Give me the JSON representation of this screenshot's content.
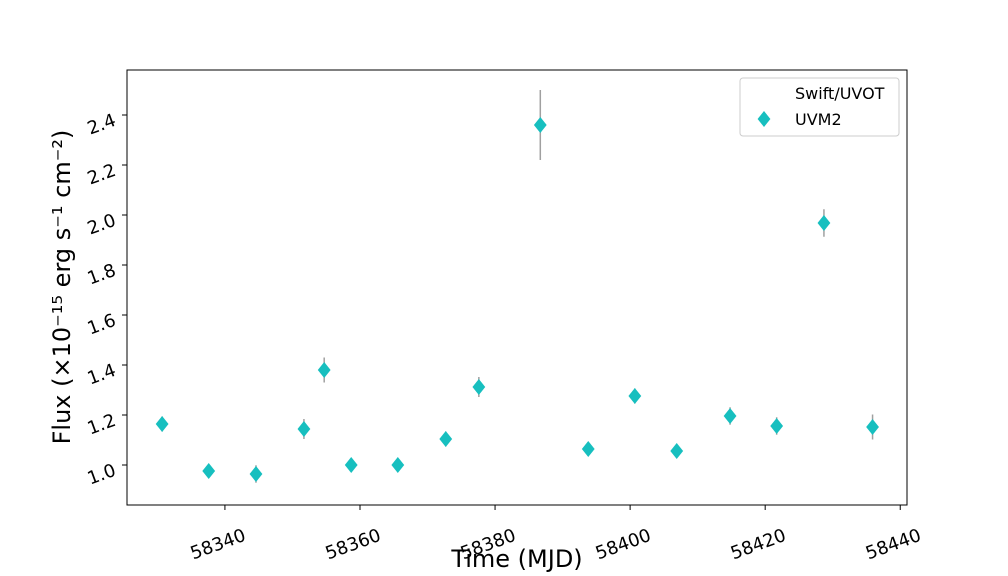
{
  "chart_data": {
    "type": "scatter",
    "xlabel": "Time (MJD)",
    "ylabel": "Flux (×10⁻¹⁵ erg  s⁻¹ cm⁻²)",
    "legend_title": "Swift/UVOT",
    "legend_loc": "upper right",
    "xlim": [
      58325.5,
      58441
    ],
    "ylim": [
      0.84,
      2.58
    ],
    "xticks": [
      58340,
      58360,
      58380,
      58400,
      58420,
      58440
    ],
    "yticks": [
      {
        "value": 1.0,
        "label": "1.0"
      },
      1.2,
      1.4,
      1.6,
      1.8,
      {
        "value": 2.0,
        "label": "2.0"
      },
      2.2,
      2.4
    ],
    "series": [
      {
        "name": "UVM2",
        "color": "#17bfbf",
        "error_color": "#a0a0a0",
        "x": [
          58330.7,
          58337.6,
          58344.6,
          58351.7,
          58354.7,
          58358.7,
          58365.6,
          58372.7,
          58377.6,
          58386.7,
          58393.8,
          58400.7,
          58406.9,
          58414.8,
          58421.7,
          58428.7,
          58435.9
        ],
        "values": [
          1.164,
          0.976,
          0.964,
          1.144,
          1.38,
          1.0,
          1.0,
          1.104,
          1.312,
          2.36,
          1.064,
          1.276,
          1.056,
          1.196,
          1.156,
          1.968,
          1.152
        ],
        "errors": [
          0.03,
          0.025,
          0.035,
          0.04,
          0.05,
          0.025,
          0.025,
          0.03,
          0.04,
          0.14,
          0.025,
          0.03,
          0.025,
          0.035,
          0.035,
          0.055,
          0.05
        ]
      }
    ]
  }
}
